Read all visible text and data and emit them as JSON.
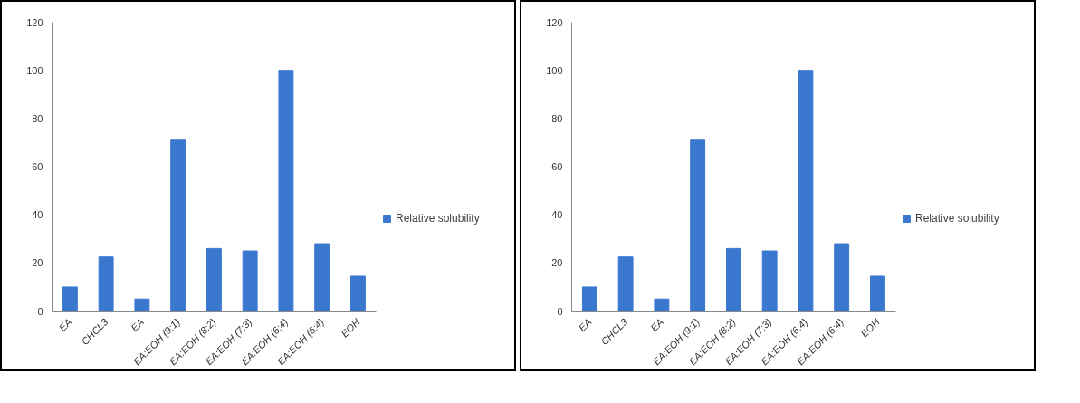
{
  "chart_data": [
    {
      "type": "bar",
      "categories": [
        "EA",
        "CHCL3",
        "EA",
        "EA:EOH (9:1)",
        "EA:EOH (8:2)",
        "EA:EOH (7:3)",
        "EA:EOH (6:4)",
        "EA:EOH (6:4)",
        "EOH"
      ],
      "series": [
        {
          "name": "Relative solubility",
          "color": "#3a78d0",
          "values": [
            10,
            22.5,
            5,
            71,
            26,
            25,
            100,
            28,
            14.5
          ]
        }
      ],
      "ylim": [
        0,
        120
      ],
      "yticks": [
        0,
        20,
        40,
        60,
        80,
        100,
        120
      ],
      "grid": false,
      "legend": "right"
    },
    {
      "type": "bar",
      "categories": [
        "EA",
        "CHCL3",
        "EA",
        "EA:EOH (9:1)",
        "EA:EOH (8:2)",
        "EA:EOH (7:3)",
        "EA:EOH (6:4)",
        "EA:EOH (6:4)",
        "EOH"
      ],
      "series": [
        {
          "name": "Relative solubility",
          "color": "#3a78d0",
          "values": [
            10,
            22.5,
            5,
            71,
            26,
            25,
            100,
            28,
            14.5
          ]
        }
      ],
      "ylim": [
        0,
        120
      ],
      "yticks": [
        0,
        20,
        40,
        60,
        80,
        100,
        120
      ],
      "grid": false,
      "legend": "right"
    }
  ]
}
